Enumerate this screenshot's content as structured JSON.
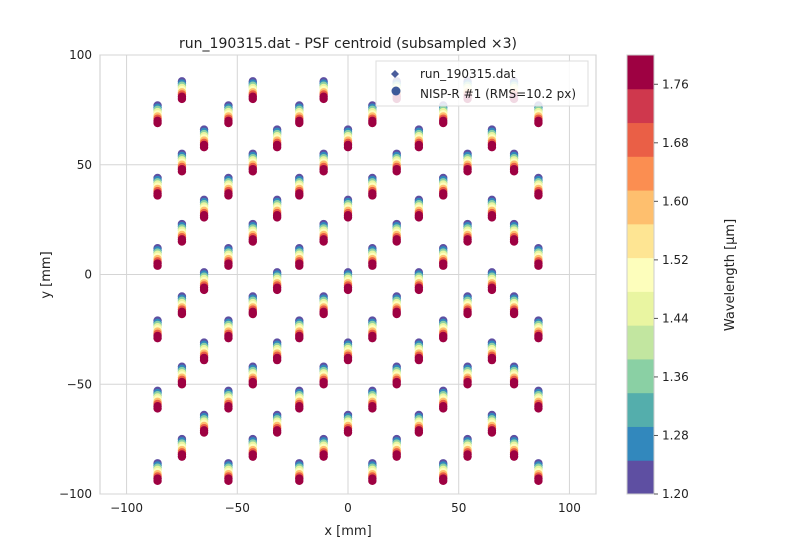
{
  "chart_data": {
    "type": "scatter",
    "title": "run_190315.dat - PSF centroid (subsampled ×3)",
    "xlabel": "x [mm]",
    "ylabel": "y [mm]",
    "xlim": [
      -112,
      112
    ],
    "ylim": [
      -100,
      100
    ],
    "xticks": [
      -100,
      -50,
      0,
      50,
      100
    ],
    "xtick_labels": [
      "−100",
      "−50",
      "0",
      "50",
      "100"
    ],
    "yticks": [
      -100,
      -50,
      0,
      50,
      100
    ],
    "ytick_labels": [
      "−100",
      "−50",
      "0",
      "50",
      "100"
    ],
    "grid": true,
    "legend_position": "top-right",
    "legend": [
      {
        "label": "run_190315.dat",
        "marker": "small-diamond",
        "color": "#4a5c9c"
      },
      {
        "label": "NISP-R #1 (RMS=10.2 px)",
        "marker": "circle",
        "color": "#3d5a99"
      }
    ],
    "field_points": {
      "x_values": [
        -86,
        -75,
        -65,
        -54,
        -43,
        -32,
        -22,
        -11,
        0,
        11,
        22,
        32,
        43,
        54,
        65,
        75,
        86
      ],
      "columns_A_y_top": [
        77,
        44,
        12,
        -21,
        -53,
        -86
      ],
      "columns_B_y_top": [
        88,
        55,
        23,
        -10,
        -42,
        -75
      ],
      "columns_C_y_top": [
        66,
        34,
        1,
        -31,
        -64
      ],
      "column_pattern": [
        "A",
        "B",
        "C",
        "A",
        "B",
        "C",
        "A",
        "B",
        "C",
        "A",
        "B",
        "C",
        "A",
        "B",
        "C",
        "B",
        "A"
      ],
      "wavelength_samples_um": [
        1.2,
        1.28,
        1.36,
        1.44,
        1.52,
        1.6,
        1.68,
        1.76,
        1.8
      ],
      "vertical_offset_per_wavelength_mm": -1.0
    },
    "colorbar": {
      "label": "Wavelength [µm]",
      "min": 1.2,
      "max": 1.8,
      "ticks": [
        1.2,
        1.28,
        1.36,
        1.44,
        1.52,
        1.6,
        1.68,
        1.76
      ],
      "tick_labels": [
        "1.20",
        "1.28",
        "1.36",
        "1.44",
        "1.52",
        "1.60",
        "1.68",
        "1.76"
      ],
      "colors": [
        "#5e4fa2",
        "#3288bd",
        "#54aeac",
        "#8ad0a4",
        "#c2e6a0",
        "#e9f5a1",
        "#fdfebc",
        "#fee593",
        "#febf6e",
        "#fb8e51",
        "#ea5f46",
        "#cf384d",
        "#9e0142"
      ]
    }
  }
}
